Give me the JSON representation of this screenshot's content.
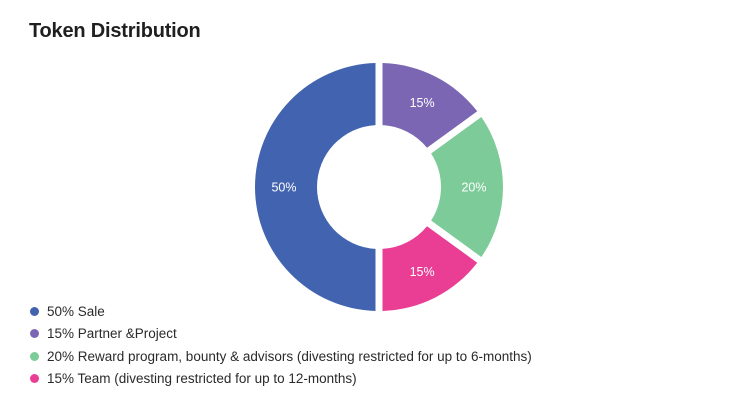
{
  "chart_data": {
    "type": "pie",
    "variant": "donut",
    "title": "Token Distribution",
    "slices": [
      {
        "label": "50% Sale",
        "value": 50,
        "data_label": "50%",
        "color": "#4264B0"
      },
      {
        "label": "15% Partner &Project",
        "value": 15,
        "data_label": "15%",
        "color": "#7B66B4"
      },
      {
        "label": "20% Reward program, bounty & advisors (divesting restricted for up to 6-months)",
        "value": 20,
        "data_label": "20%",
        "color": "#7CCB98"
      },
      {
        "label": "15% Team (divesting restricted for up to 12-months)",
        "value": 15,
        "data_label": "15%",
        "color": "#EA3D94"
      }
    ],
    "legend_position": "bottom-left"
  }
}
